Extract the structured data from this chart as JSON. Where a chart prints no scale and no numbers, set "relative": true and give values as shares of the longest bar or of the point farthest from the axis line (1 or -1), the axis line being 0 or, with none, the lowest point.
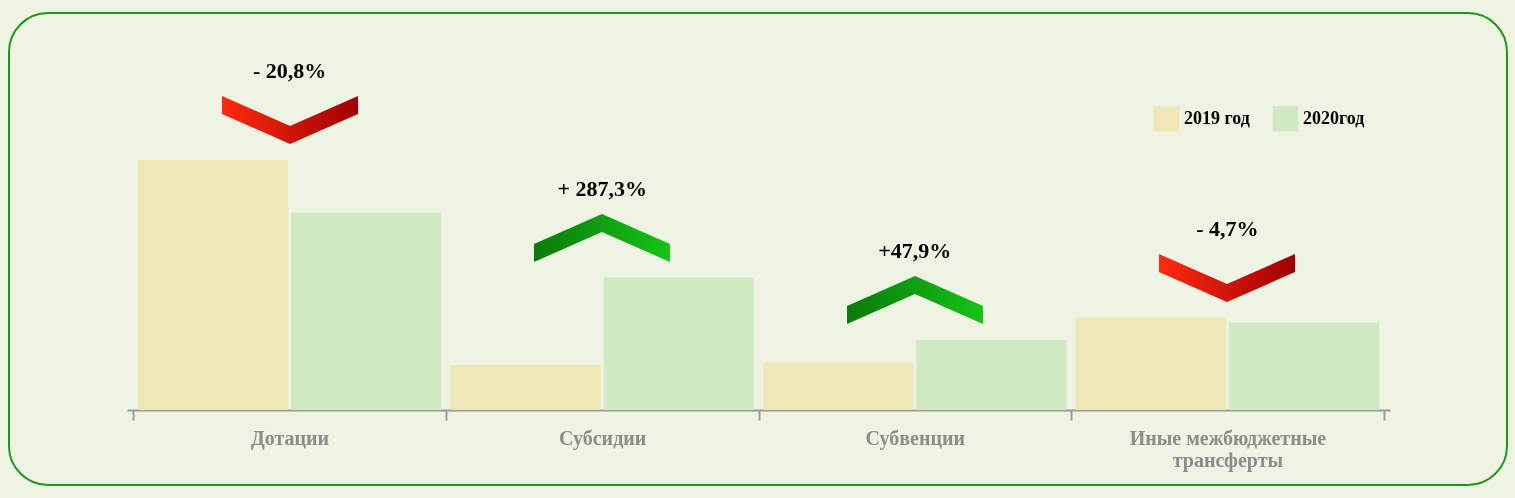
{
  "chart_data": {
    "type": "bar",
    "relative": true,
    "categories": [
      "Дотации",
      "Субсидии",
      "Субвенции",
      "Иные межбюджетные трансферты"
    ],
    "series": [
      {
        "name": "2019 год",
        "color": "#efe7b6",
        "values": [
          1,
          0.18,
          0.19,
          0.37
        ]
      },
      {
        "name": "2020год",
        "color": "#cfe9c3",
        "values": [
          0.79,
          0.53,
          0.28,
          0.35
        ]
      }
    ],
    "annotations": [
      "- 20,8%",
      "+ 287,3%",
      "+47,9%",
      "- 4,7%"
    ],
    "legend": "top right",
    "grid": false
  }
}
